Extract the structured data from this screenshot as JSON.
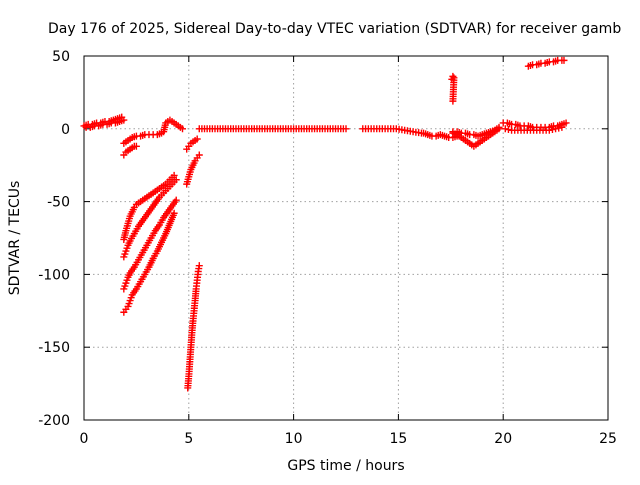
{
  "chart_data": {
    "type": "scatter",
    "title": "Day 176 of 2025, Sidereal Day-to-day VTEC variation (SDTVAR) for receiver gamb",
    "xlabel": "GPS time / hours",
    "ylabel": "SDTVAR / TECUs",
    "xlim": [
      0,
      25
    ],
    "ylim": [
      -200,
      50
    ],
    "x_ticks": [
      "0",
      "5",
      "10",
      "15",
      "20",
      "25"
    ],
    "y_ticks": [
      "50",
      "0",
      "-50",
      "-100",
      "-150",
      "-200"
    ],
    "grid": true,
    "marker": "plus",
    "color": "#ff0000",
    "series": [
      {
        "name": "near-zero band 0-2h",
        "x": [
          0.0,
          0.2,
          0.4,
          0.6,
          0.8,
          1.0,
          1.2,
          1.4,
          1.6,
          1.8
        ],
        "y": [
          2,
          3,
          3,
          4,
          4,
          5,
          5,
          6,
          7,
          8
        ]
      },
      {
        "name": "near-zero band 0-2h lower",
        "x": [
          0.1,
          0.3,
          0.5,
          0.7,
          0.9,
          1.1,
          1.3,
          1.5,
          1.7,
          1.9
        ],
        "y": [
          1,
          1,
          2,
          2,
          3,
          3,
          4,
          4,
          5,
          6
        ]
      },
      {
        "name": "slight dip 2-4h",
        "x": [
          1.9,
          2.1,
          2.3,
          2.5,
          2.7,
          2.9,
          3.1,
          3.3,
          3.5,
          3.7
        ],
        "y": [
          -10,
          -8,
          -6,
          -5,
          -5,
          -4,
          -4,
          -4,
          -4,
          -3
        ]
      },
      {
        "name": "bump near 4h",
        "x": [
          3.8,
          3.9,
          4.0,
          4.1,
          4.2,
          4.3,
          4.4,
          4.5,
          4.6,
          4.7
        ],
        "y": [
          -2,
          4,
          5,
          6,
          5,
          4,
          3,
          2,
          1,
          0
        ]
      },
      {
        "name": "short arc 2-2.5h",
        "x": [
          1.9,
          2.0,
          2.1,
          2.2,
          2.3,
          2.4,
          2.5
        ],
        "y": [
          -18,
          -16,
          -15,
          -14,
          -13,
          -12,
          -12
        ]
      },
      {
        "name": "arc A (upper descending)",
        "x": [
          1.9,
          2.0,
          2.1,
          2.2,
          2.3,
          2.4,
          2.5,
          2.7,
          2.9,
          3.1,
          3.3,
          3.5,
          3.7,
          3.9,
          4.1,
          4.3
        ],
        "y": [
          -76,
          -70,
          -65,
          -60,
          -57,
          -54,
          -52,
          -50,
          -48,
          -46,
          -44,
          -42,
          -40,
          -38,
          -35,
          -32
        ]
      },
      {
        "name": "arc B (middle)",
        "x": [
          1.9,
          2.0,
          2.1,
          2.2,
          2.4,
          2.6,
          2.8,
          3.0,
          3.2,
          3.4,
          3.6,
          3.8,
          4.0,
          4.2,
          4.4
        ],
        "y": [
          -88,
          -84,
          -80,
          -77,
          -72,
          -67,
          -63,
          -59,
          -55,
          -51,
          -47,
          -44,
          -41,
          -38,
          -35
        ]
      },
      {
        "name": "arc C (lower)",
        "x": [
          1.9,
          2.0,
          2.1,
          2.2,
          2.4,
          2.6,
          2.8,
          3.0,
          3.2,
          3.4,
          3.6,
          3.8,
          4.0,
          4.2,
          4.4
        ],
        "y": [
          -110,
          -106,
          -102,
          -99,
          -95,
          -90,
          -85,
          -80,
          -75,
          -70,
          -66,
          -61,
          -57,
          -53,
          -49
        ]
      },
      {
        "name": "arc D (deepest)",
        "x": [
          1.9,
          2.0,
          2.1,
          2.2,
          2.3,
          2.5,
          2.7,
          2.9,
          3.1,
          3.3,
          3.5,
          3.7,
          3.9,
          4.1,
          4.3
        ],
        "y": [
          -126,
          -124,
          -122,
          -118,
          -114,
          -110,
          -105,
          -100,
          -95,
          -89,
          -84,
          -78,
          -72,
          -65,
          -58
        ]
      },
      {
        "name": "post-5h recovery arc",
        "x": [
          4.9,
          5.0,
          5.1,
          5.2,
          5.3,
          5.4,
          5.5
        ],
        "y": [
          -38,
          -33,
          -28,
          -25,
          -22,
          -20,
          -18
        ]
      },
      {
        "name": "short arc near 5h",
        "x": [
          4.9,
          5.0,
          5.1,
          5.2,
          5.3,
          5.4
        ],
        "y": [
          -14,
          -12,
          -10,
          -9,
          -8,
          -7
        ]
      },
      {
        "name": "steep arc near 5h",
        "x": [
          4.95,
          5.0,
          5.05,
          5.1,
          5.15,
          5.2,
          5.25,
          5.3,
          5.35,
          5.4,
          5.45,
          5.5
        ],
        "y": [
          -178,
          -170,
          -160,
          -150,
          -140,
          -132,
          -125,
          -118,
          -110,
          -104,
          -98,
          -94
        ]
      },
      {
        "name": "main flat band 5.5-13h",
        "x": [
          5.5,
          6.0,
          6.5,
          7.0,
          7.5,
          8.0,
          8.5,
          9.0,
          9.5,
          10.0,
          10.5,
          11.0,
          11.5,
          12.0,
          12.5
        ],
        "y": [
          0,
          0,
          0,
          0,
          0,
          0,
          0,
          0,
          0,
          0,
          0,
          0,
          0,
          0,
          0
        ]
      },
      {
        "name": "band 13-16h",
        "x": [
          13.3,
          13.7,
          14.1,
          14.5,
          14.9,
          15.3,
          15.7,
          16.1
        ],
        "y": [
          0,
          0,
          0,
          0,
          0,
          -1,
          -2,
          -3
        ]
      },
      {
        "name": "scatter 16-17.5h",
        "x": [
          16.2,
          16.4,
          16.6,
          16.8,
          17.0,
          17.2,
          17.4,
          17.6,
          17.8
        ],
        "y": [
          -3,
          -4,
          -5,
          -5,
          -4,
          -5,
          -6,
          -6,
          -5
        ]
      },
      {
        "name": "dip 17.5-20h",
        "x": [
          17.6,
          17.8,
          18.0,
          18.2,
          18.4,
          18.6,
          18.8,
          19.0,
          19.2,
          19.4,
          19.6,
          19.8
        ],
        "y": [
          -3,
          -4,
          -6,
          -8,
          -10,
          -12,
          -10,
          -8,
          -6,
          -4,
          -2,
          0
        ]
      },
      {
        "name": "band 17.5-20h upper",
        "x": [
          17.6,
          17.8,
          18.0,
          18.2,
          18.4,
          18.6,
          18.8,
          19.0,
          19.2,
          19.4,
          19.6,
          19.8
        ],
        "y": [
          -2,
          -2,
          -3,
          -3,
          -4,
          -4,
          -5,
          -4,
          -3,
          -2,
          -1,
          1
        ]
      },
      {
        "name": "spike near 17.6h",
        "x": [
          17.55,
          17.6,
          17.65,
          17.6
        ],
        "y": [
          34,
          36,
          35,
          19
        ]
      },
      {
        "name": "band 20-23h",
        "x": [
          20.0,
          20.2,
          20.4,
          20.6,
          20.8,
          21.0,
          21.2,
          21.4,
          21.6,
          21.8,
          22.0,
          22.2,
          22.4,
          22.6,
          22.8,
          23.0
        ],
        "y": [
          4,
          4,
          3,
          3,
          2,
          2,
          2,
          1,
          1,
          1,
          1,
          1,
          2,
          2,
          3,
          4
        ]
      },
      {
        "name": "band 20-23h lower",
        "x": [
          20.1,
          20.4,
          20.7,
          21.0,
          21.3,
          21.6,
          21.9,
          22.2,
          22.5,
          22.8
        ],
        "y": [
          0,
          -1,
          -1,
          -1,
          -1,
          -1,
          -1,
          -1,
          0,
          1
        ]
      },
      {
        "name": "high arc 21-23h",
        "x": [
          21.2,
          21.4,
          21.6,
          21.8,
          22.0,
          22.2,
          22.4,
          22.6,
          22.8,
          22.9
        ],
        "y": [
          43,
          44,
          44,
          45,
          45,
          46,
          46,
          47,
          47,
          47
        ]
      }
    ]
  }
}
